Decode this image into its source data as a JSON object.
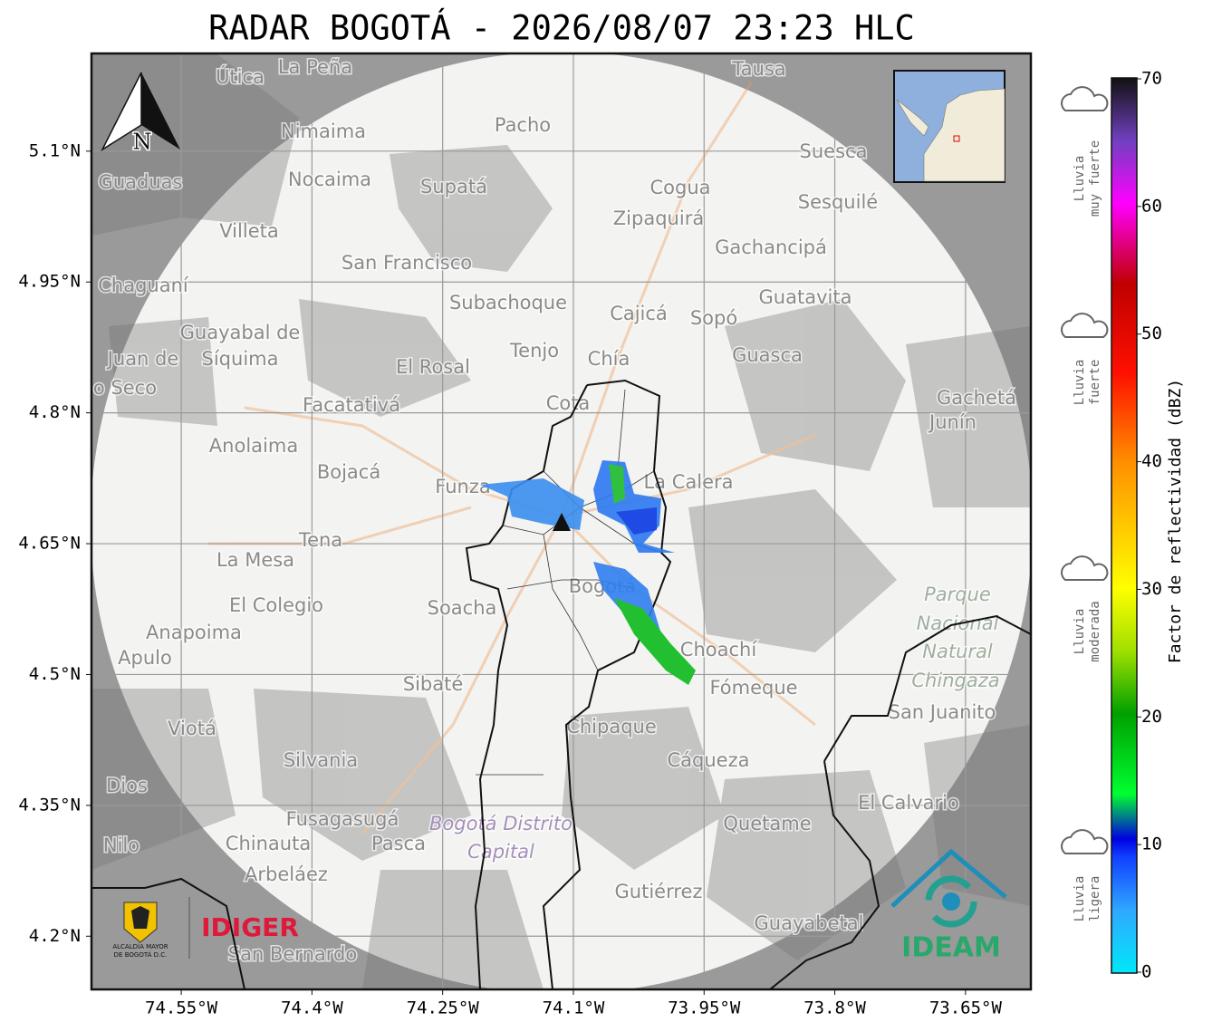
{
  "header": {
    "title": "RADAR BOGOTÁ - 2026/08/07 23:23 HLC"
  },
  "map": {
    "lon_range": [
      -74.653,
      -73.575
    ],
    "lat_range": [
      4.139,
      5.212
    ],
    "x_ticks": [
      {
        "value": -74.55,
        "label": "74.55°W"
      },
      {
        "value": -74.4,
        "label": "74.4°W"
      },
      {
        "value": -74.25,
        "label": "74.25°W"
      },
      {
        "value": -74.1,
        "label": "74.1°W"
      },
      {
        "value": -73.95,
        "label": "73.95°W"
      },
      {
        "value": -73.8,
        "label": "73.8°W"
      },
      {
        "value": -73.65,
        "label": "73.65°W"
      }
    ],
    "y_ticks": [
      {
        "value": 5.1,
        "label": "5.1°N"
      },
      {
        "value": 4.95,
        "label": "4.95°N"
      },
      {
        "value": 4.8,
        "label": "4.8°N"
      },
      {
        "value": 4.65,
        "label": "4.65°N"
      },
      {
        "value": 4.5,
        "label": "4.5°N"
      },
      {
        "value": 4.35,
        "label": "4.35°N"
      },
      {
        "value": 4.2,
        "label": "4.2°N"
      }
    ],
    "north_label": "N",
    "places": [
      "La Peña",
      "Útica",
      "Tausa",
      "Pacho",
      "Nimaima",
      "Guaduas",
      "Nocaima",
      "Supatá",
      "Cogua",
      "Suesca",
      "Sesquilé",
      "Zipaquirá",
      "Villeta",
      "Gachancipá",
      "San Francisco",
      "Chaguaní",
      "Guatavita",
      "Subachoque",
      "Cajicá",
      "Sopó",
      "Guayabal de",
      "Síquima",
      "Tenjo",
      "Chía",
      "Guasca",
      "Juan de",
      "o Seco",
      "El Rosal",
      "Facatativá",
      "Cota",
      "Gachetá",
      "Junín",
      "Anolaima",
      "Bojacá",
      "Funza",
      "La Calera",
      "Tena",
      "La Mesa",
      "Parque",
      "Nacional",
      "Natural",
      "Chingaza",
      "El Colegio",
      "Soacha",
      "Bogotá",
      "Anapoima",
      "Apulo",
      "Choachí",
      "Sibaté",
      "Fómeque",
      "San Juanito",
      "Viotá",
      "Chipaque",
      "Silvania",
      "Cáqueza",
      "Dios",
      "El Calvario",
      "Fusagasugá",
      "Bogotá Distrito",
      "Capital",
      "Quetame",
      "Nilo",
      "Chinauta",
      "Pasca",
      "Arbeláez",
      "Gutiérrez",
      "Guayabetal",
      "San Bernardo"
    ]
  },
  "colorbar": {
    "label": "Factor de reflectividad (dBZ)",
    "lim": [
      0,
      70
    ],
    "ticks": [
      0,
      10,
      20,
      30,
      40,
      50,
      60,
      70
    ],
    "categories": [
      [
        "Lluvia",
        "muy fuerte"
      ],
      [
        "Lluvia",
        "fuerte"
      ],
      [
        "Lluvia",
        "moderada"
      ],
      [
        "Lluvia",
        "ligera"
      ]
    ]
  },
  "logos": {
    "alcaldia": [
      "ALCALDÍA MAYOR",
      "DE BOGOTÁ D.C."
    ],
    "idiger": "IDIGER",
    "ideam": "IDEAM"
  }
}
